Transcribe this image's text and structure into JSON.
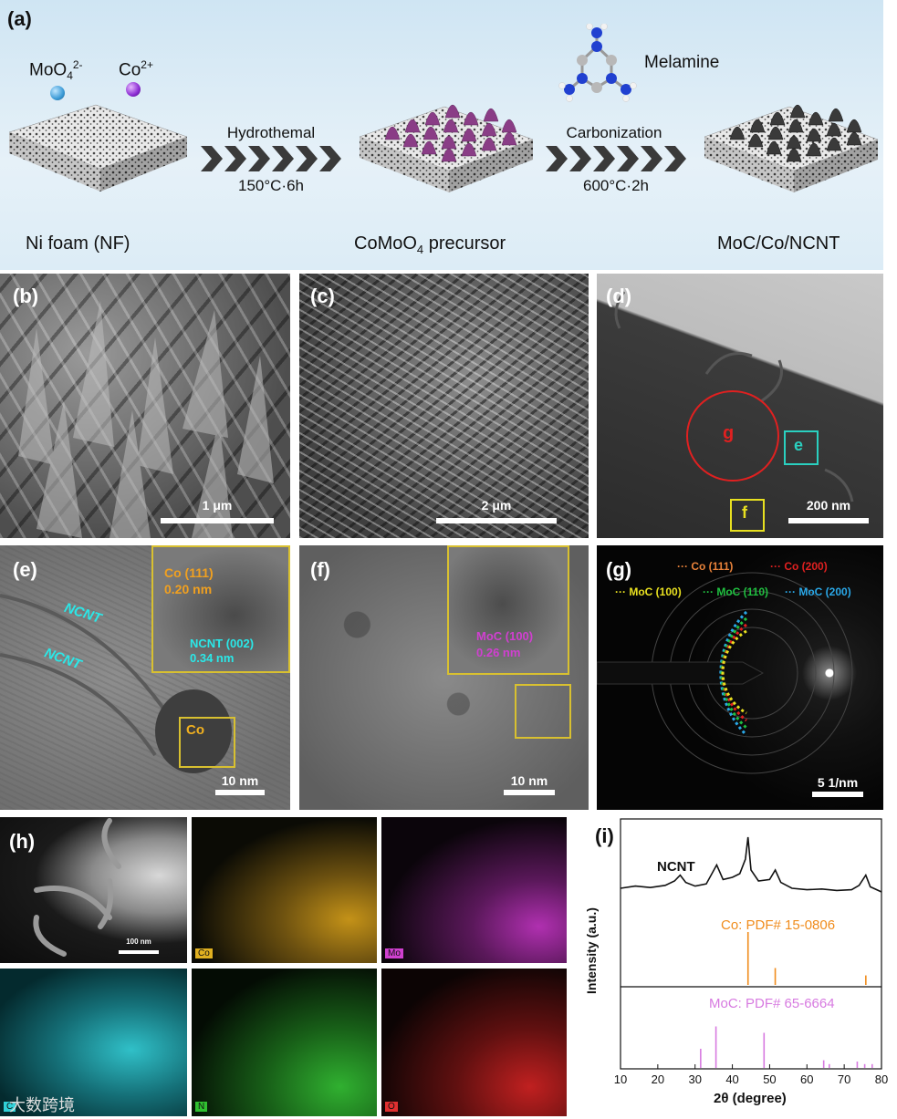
{
  "panel_a": {
    "label": "(a)",
    "ion1": {
      "base": "MoO",
      "sub": "4",
      "sup": "2-"
    },
    "ion2": {
      "base": "Co",
      "sup": "2+"
    },
    "melamine": "Melamine",
    "step1": {
      "name": "Hydrothemal",
      "cond": "150°C·6h"
    },
    "step2": {
      "name": "Carbonization",
      "cond": "600°C·2h"
    },
    "stage1": "Ni foam (NF)",
    "stage2": {
      "base": "CoMoO",
      "sub": "4",
      "rest": " precursor"
    },
    "stage3": "MoC/Co/NCNT",
    "colors": {
      "moo4": "#3a9ad6",
      "co2": "#8a2bd2",
      "precursor": "#8a3d86",
      "product": "#333333"
    }
  },
  "panel_b": {
    "label": "(b)",
    "scale": "1 μm"
  },
  "panel_c": {
    "label": "(c)",
    "scale": "2 μm"
  },
  "panel_d": {
    "label": "(d)",
    "scale": "200 nm",
    "marker_g": "g",
    "marker_e": "e",
    "marker_f": "f"
  },
  "panel_e": {
    "label": "(e)",
    "ncnt1": "NCNT",
    "ncnt2": "NCNT",
    "co_l1": "Co (111)",
    "co_l2": "0.20 nm",
    "ncnt_l1": "NCNT (002)",
    "ncnt_l2": "0.34 nm",
    "co_box": "Co",
    "scale": "10 nm"
  },
  "panel_f": {
    "label": "(f)",
    "moc_l1": "MoC (100)",
    "moc_l2": "0.26 nm",
    "scale": "10 nm"
  },
  "panel_g": {
    "label": "(g)",
    "rings": [
      {
        "name": "Co  (111)",
        "color": "#e8823a"
      },
      {
        "name": "Co  (200)",
        "color": "#e02020"
      },
      {
        "name": "MoC (100)",
        "color": "#e8e020"
      },
      {
        "name": "MoC (110)",
        "color": "#20c040"
      },
      {
        "name": "MoC (200)",
        "color": "#2aa8e8"
      }
    ],
    "scale": "5 1/nm"
  },
  "panel_h": {
    "label": "(h)",
    "scale": "100 nm",
    "maps": [
      "Co",
      "Mo",
      "C",
      "N",
      "O"
    ]
  },
  "panel_i": {
    "label": "(i)",
    "ylabel": "Intensity (a.u.)",
    "xlabel": "2θ (degree)",
    "ncnt": "NCNT",
    "co_ref": "Co: PDF# 15-0806",
    "moc_ref": "MoC: PDF# 65-6664"
  },
  "watermark": "大数跨境",
  "chart_data": {
    "type": "line",
    "xlabel": "2θ (degree)",
    "ylabel": "Intensity (a.u.)",
    "xlim": [
      10,
      80
    ],
    "xticks": [
      10,
      20,
      30,
      40,
      50,
      60,
      70,
      80
    ],
    "annotation": "NCNT",
    "series": [
      {
        "values": [
          [
            10,
            0.3
          ],
          [
            14,
            0.33
          ],
          [
            18,
            0.31
          ],
          [
            22,
            0.34
          ],
          [
            24.5,
            0.4
          ],
          [
            26,
            0.48
          ],
          [
            27.5,
            0.38
          ],
          [
            30,
            0.33
          ],
          [
            33,
            0.36
          ],
          [
            35.8,
            0.62
          ],
          [
            37.5,
            0.42
          ],
          [
            40,
            0.45
          ],
          [
            42,
            0.5
          ],
          [
            43.5,
            0.7
          ],
          [
            44.2,
            1.0
          ],
          [
            45,
            0.55
          ],
          [
            47,
            0.4
          ],
          [
            50,
            0.42
          ],
          [
            51.5,
            0.55
          ],
          [
            53,
            0.38
          ],
          [
            56,
            0.3
          ],
          [
            60,
            0.28
          ],
          [
            64,
            0.29
          ],
          [
            68,
            0.27
          ],
          [
            72,
            0.28
          ],
          [
            74,
            0.34
          ],
          [
            75.8,
            0.48
          ],
          [
            77,
            0.32
          ],
          [
            80,
            0.25
          ]
        ]
      }
    ],
    "references": [
      {
        "name": "Co: PDF# 15-0806",
        "color": "#f08c1c",
        "sticks": [
          [
            44.2,
            1.0
          ],
          [
            51.5,
            0.32
          ],
          [
            75.8,
            0.18
          ]
        ]
      },
      {
        "name": "MoC: PDF# 65-6664",
        "color": "#d77ae0",
        "sticks": [
          [
            31.5,
            0.3
          ],
          [
            35.6,
            0.65
          ],
          [
            48.5,
            0.55
          ],
          [
            64.5,
            0.12
          ],
          [
            66.0,
            0.06
          ],
          [
            73.5,
            0.1
          ],
          [
            75.5,
            0.06
          ],
          [
            77.5,
            0.06
          ]
        ]
      }
    ]
  }
}
